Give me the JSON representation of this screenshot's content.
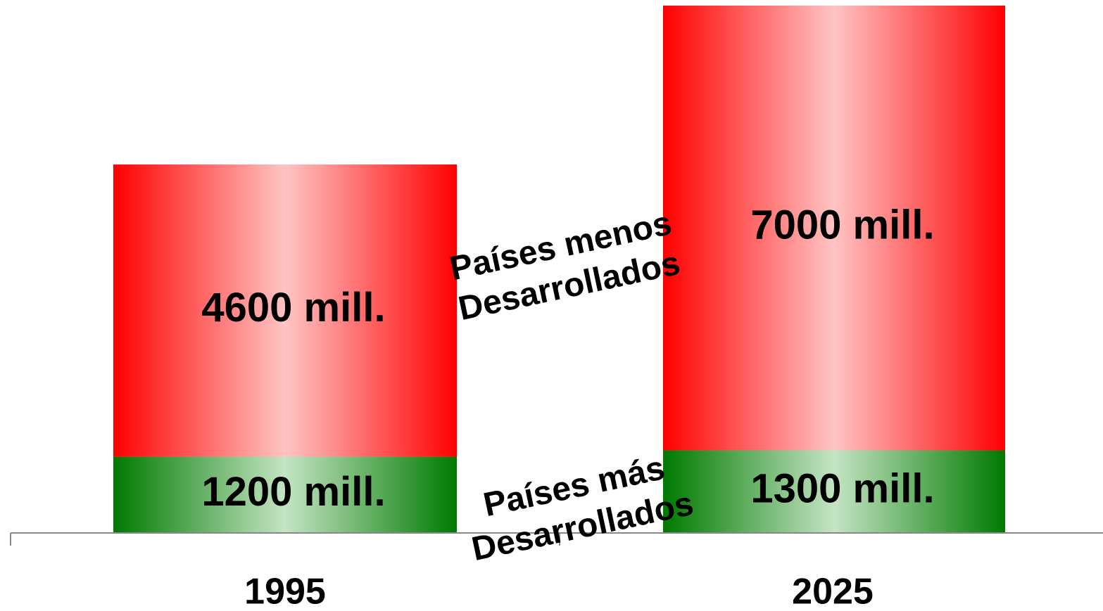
{
  "chart_data": {
    "type": "stacked_bar",
    "categories": [
      "1995",
      "2025"
    ],
    "series": [
      {
        "name": "Países más Desarrollados",
        "color": "#007a00",
        "values": [
          1200,
          1300
        ],
        "value_labels": [
          "1200 mill.",
          "1300 mill."
        ]
      },
      {
        "name": "Países menos Desarrollados",
        "color": "#ff0000",
        "values": [
          4600,
          7000
        ],
        "value_labels": [
          "4600 mill.",
          "7000 mill."
        ]
      }
    ]
  }
}
